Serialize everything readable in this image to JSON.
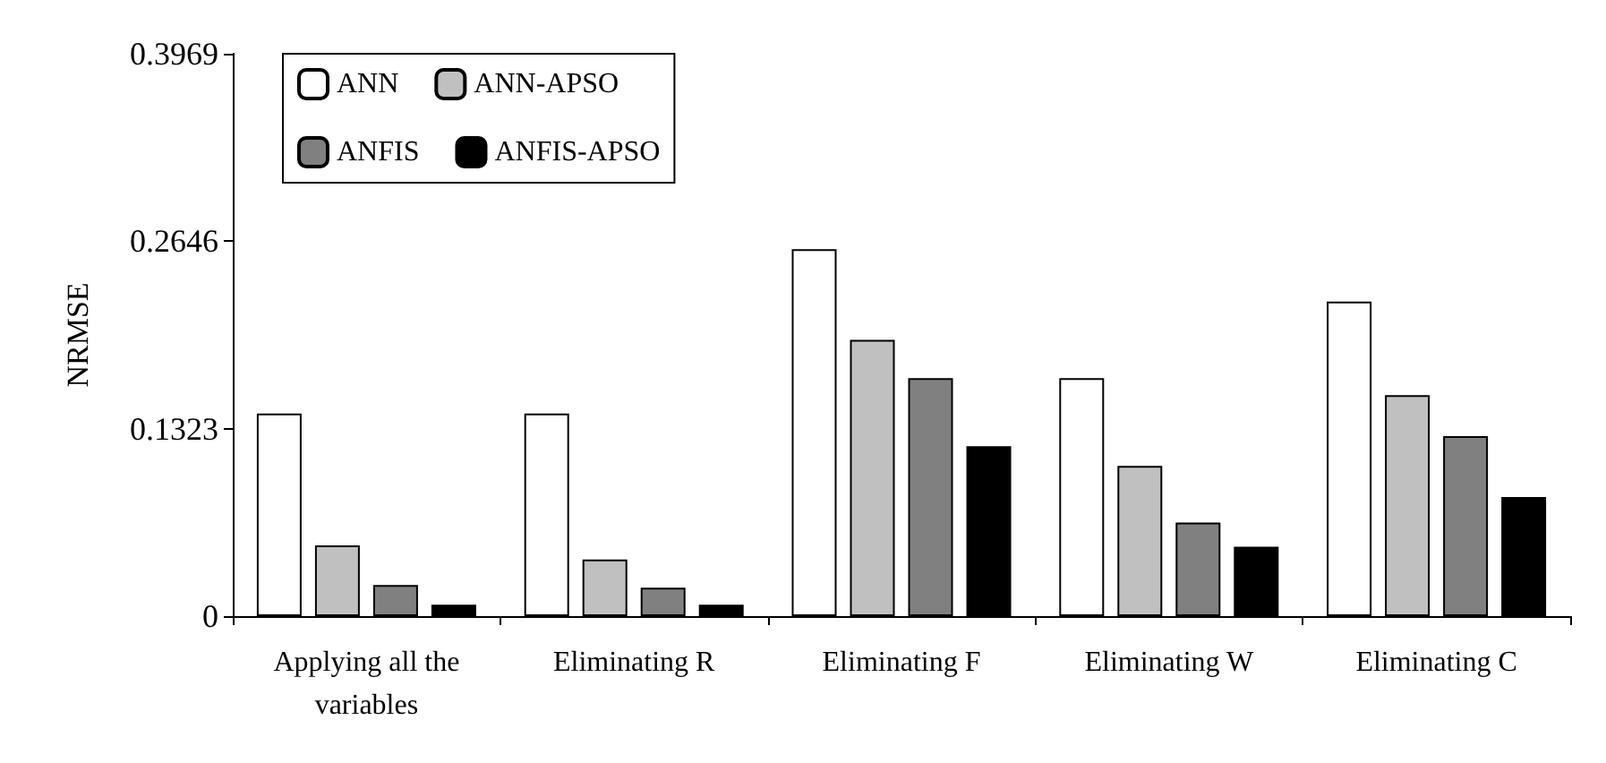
{
  "chart_data": {
    "type": "bar",
    "ylabel": "NRMSE",
    "categories": [
      "Applying all the\nvariables",
      "Eliminating R",
      "Eliminating F",
      "Eliminating W",
      "Eliminating C"
    ],
    "series": [
      {
        "name": "ANN",
        "color": "#ffffff",
        "values": [
          0.143,
          0.143,
          0.259,
          0.168,
          0.222
        ]
      },
      {
        "name": "ANN-APSO",
        "color": "#c0c0c0",
        "values": [
          0.05,
          0.04,
          0.195,
          0.106,
          0.156
        ]
      },
      {
        "name": "ANFIS",
        "color": "#808080",
        "values": [
          0.022,
          0.02,
          0.168,
          0.066,
          0.127
        ]
      },
      {
        "name": "ANFIS-APSO",
        "color": "#000000",
        "values": [
          0.008,
          0.008,
          0.12,
          0.049,
          0.084
        ]
      }
    ],
    "ylim": [
      0,
      0.3969
    ],
    "yticks": [
      0,
      0.1323,
      0.2646,
      0.3969
    ],
    "grid": false,
    "legend": "top left"
  }
}
